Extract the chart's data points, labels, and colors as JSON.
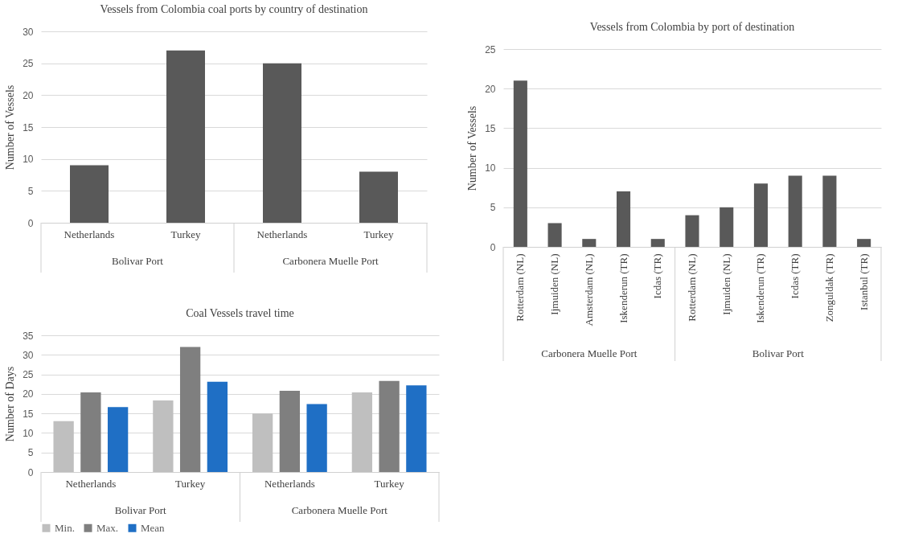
{
  "chart_data": [
    {
      "type": "bar",
      "title": "Vessels from Colombia coal ports by country of destination",
      "ylabel": "Number of Vessels",
      "categories": [
        "Netherlands",
        "Turkey",
        "Netherlands",
        "Turkey"
      ],
      "series": [
        {
          "color": "#595959",
          "values": [
            9,
            27,
            25,
            8
          ]
        }
      ],
      "ylim": [
        0,
        30
      ],
      "yticks": [
        0,
        5,
        10,
        15,
        20,
        25,
        30
      ],
      "grid": "y",
      "annotations": [
        "Bolivar Port",
        "Carbonera Muelle Port"
      ]
    },
    {
      "type": "bar",
      "title": "Vessels from Colombia by port of destination",
      "ylabel": "Number of Vessels",
      "categories": [
        "Rotterdam (NL)",
        "Ijmuiden (NL)",
        "Amsterdam (NL)",
        "Iskenderun (TR)",
        "Icdas (TR)",
        "Rotterdam (NL)",
        "Ijmuiden (NL)",
        "Iskenderun (TR)",
        "Icdas (TR)",
        "Zonguldak (TR)",
        "Istanbul (TR)"
      ],
      "series": [
        {
          "color": "#595959",
          "values": [
            21,
            3,
            1,
            7,
            1,
            4,
            5,
            8,
            9,
            9,
            1
          ]
        }
      ],
      "ylim": [
        0,
        25
      ],
      "yticks": [
        0,
        5,
        10,
        15,
        20,
        25
      ],
      "grid": "y",
      "annotations": [
        "Carbonera Muelle Port",
        "Bolivar Port"
      ]
    },
    {
      "type": "bar",
      "title": "Coal Vessels travel time",
      "ylabel": "Number of Days",
      "categories": [
        "Netherlands",
        "Turkey",
        "Netherlands",
        "Turkey"
      ],
      "series": [
        {
          "name": "Min.",
          "color": "#bfbfbf",
          "values": [
            13,
            18.3,
            15,
            20.4
          ]
        },
        {
          "name": "Max.",
          "color": "#7f7f7f",
          "values": [
            20.4,
            32,
            20.8,
            23.3
          ]
        },
        {
          "name": "Mean",
          "color": "#1f6fc5",
          "values": [
            16.6,
            23.1,
            17.4,
            22.2
          ]
        }
      ],
      "ylim": [
        0,
        35
      ],
      "yticks": [
        0,
        5,
        10,
        15,
        20,
        25,
        30,
        35
      ],
      "grid": "y",
      "legend": "bottom",
      "annotations": [
        "Bolivar Port",
        "Carbonera Muelle Port"
      ]
    }
  ]
}
